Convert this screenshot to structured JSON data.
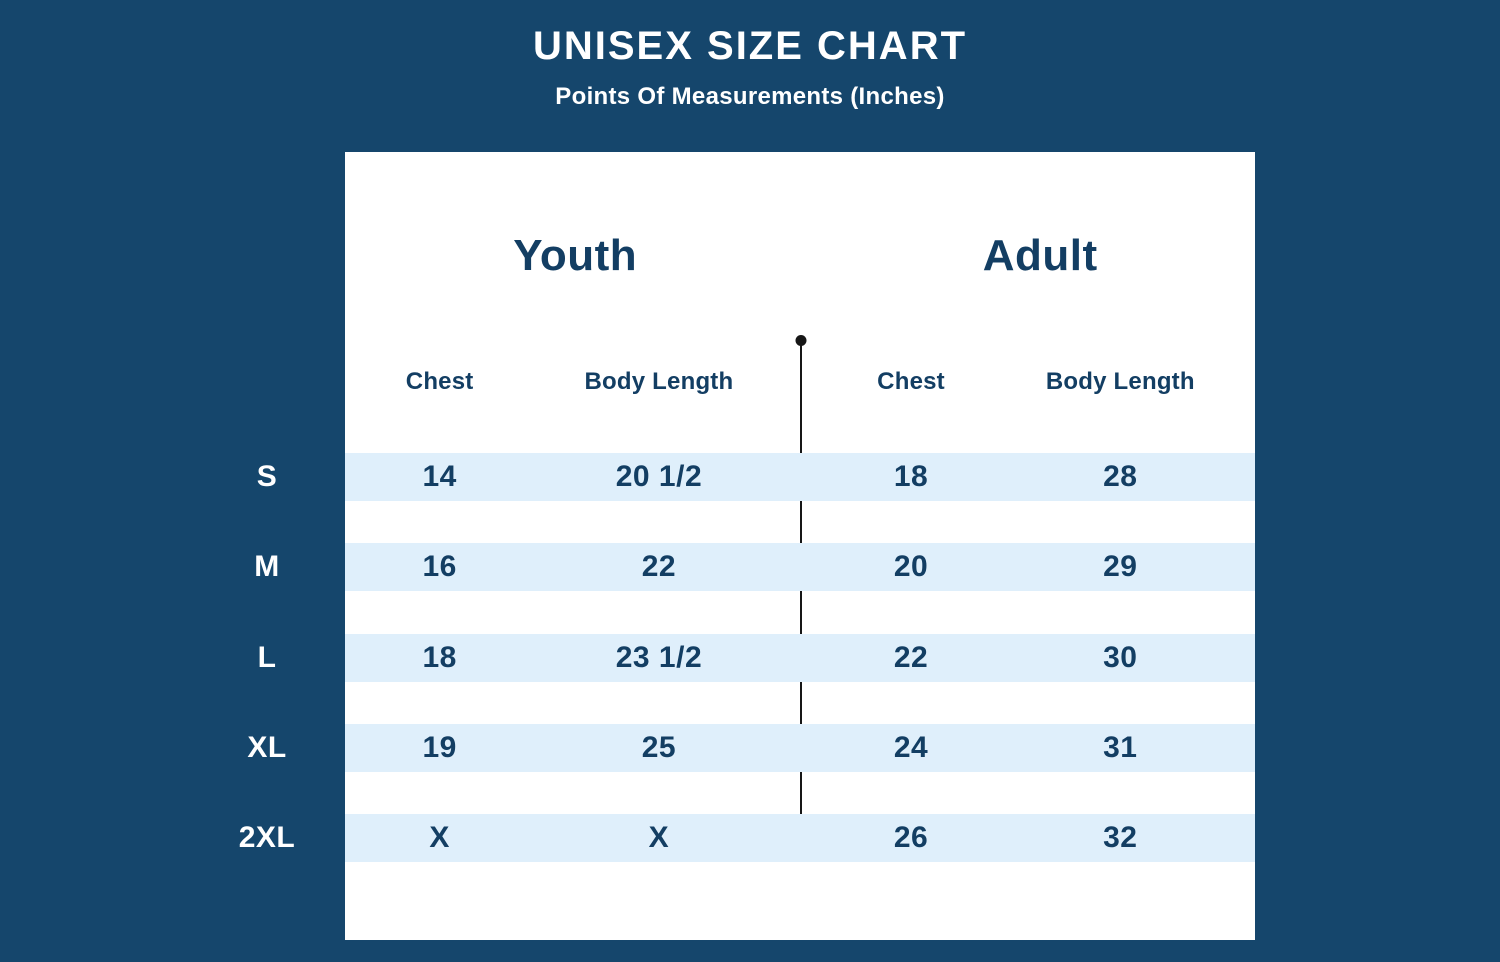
{
  "colors": {
    "background": "#15466C",
    "card": "#FFFFFF",
    "stripe": "#DFEFFB",
    "navy_text": "#133E63",
    "divider": "#161616",
    "title_text": "#FFFFFF"
  },
  "chart_data": {
    "type": "table",
    "title": "UNISEX SIZE CHART",
    "subtitle": "Points Of Measurements (Inches)",
    "units": "Inches",
    "column_groups": [
      "Youth",
      "Adult"
    ],
    "column_headers": [
      "Chest",
      "Body Length",
      "Chest",
      "Body Length"
    ],
    "size_labels": [
      "S",
      "M",
      "L",
      "XL",
      "2XL"
    ],
    "rows": [
      [
        "14",
        "20 1/2",
        "18",
        "28"
      ],
      [
        "16",
        "22",
        "20",
        "29"
      ],
      [
        "18",
        "23 1/2",
        "22",
        "30"
      ],
      [
        "19",
        "25",
        "24",
        "31"
      ],
      [
        "X",
        "X",
        "26",
        "32"
      ]
    ]
  }
}
